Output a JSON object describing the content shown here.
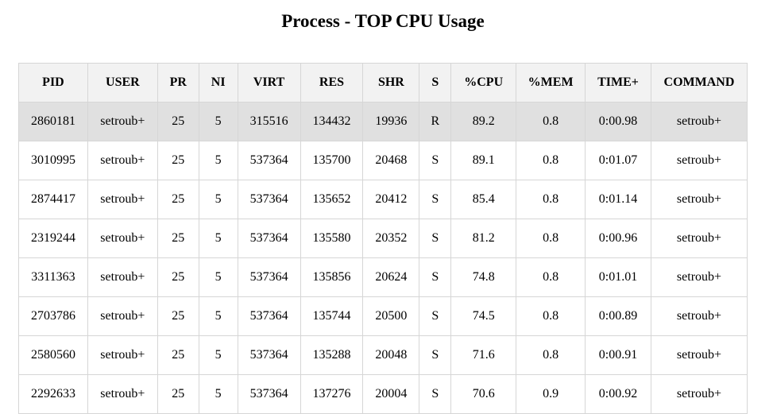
{
  "title": "Process - TOP CPU Usage",
  "table": {
    "headers": [
      "PID",
      "USER",
      "PR",
      "NI",
      "VIRT",
      "RES",
      "SHR",
      "S",
      "%CPU",
      "%MEM",
      "TIME+",
      "COMMAND"
    ],
    "rows": [
      [
        "2860181",
        "setroub+",
        "25",
        "5",
        "315516",
        "134432",
        "19936",
        "R",
        "89.2",
        "0.8",
        "0:00.98",
        "setroub+"
      ],
      [
        "3010995",
        "setroub+",
        "25",
        "5",
        "537364",
        "135700",
        "20468",
        "S",
        "89.1",
        "0.8",
        "0:01.07",
        "setroub+"
      ],
      [
        "2874417",
        "setroub+",
        "25",
        "5",
        "537364",
        "135652",
        "20412",
        "S",
        "85.4",
        "0.8",
        "0:01.14",
        "setroub+"
      ],
      [
        "2319244",
        "setroub+",
        "25",
        "5",
        "537364",
        "135580",
        "20352",
        "S",
        "81.2",
        "0.8",
        "0:00.96",
        "setroub+"
      ],
      [
        "3311363",
        "setroub+",
        "25",
        "5",
        "537364",
        "135856",
        "20624",
        "S",
        "74.8",
        "0.8",
        "0:01.01",
        "setroub+"
      ],
      [
        "2703786",
        "setroub+",
        "25",
        "5",
        "537364",
        "135744",
        "20500",
        "S",
        "74.5",
        "0.8",
        "0:00.89",
        "setroub+"
      ],
      [
        "2580560",
        "setroub+",
        "25",
        "5",
        "537364",
        "135288",
        "20048",
        "S",
        "71.6",
        "0.8",
        "0:00.91",
        "setroub+"
      ],
      [
        "2292633",
        "setroub+",
        "25",
        "5",
        "537364",
        "137276",
        "20004",
        "S",
        "70.6",
        "0.9",
        "0:00.92",
        "setroub+"
      ]
    ]
  },
  "colors": {
    "header_bg": "#f2f2f2",
    "highlight_row_bg": "#e0e0e0",
    "border": "#d6d6d6"
  }
}
